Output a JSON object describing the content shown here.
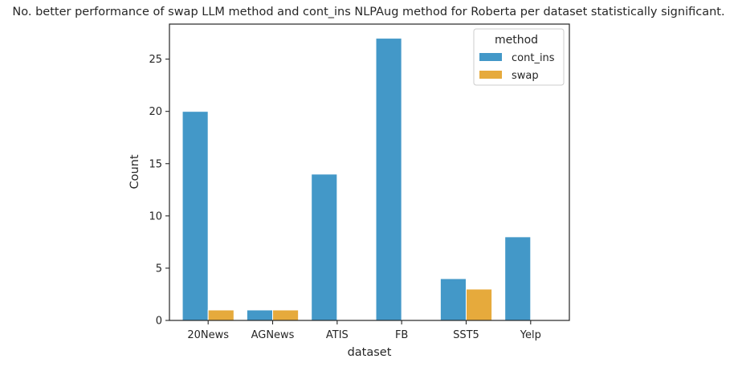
{
  "chart_data": {
    "type": "bar",
    "title": "No. better performance of swap LLM method and cont_ins NLPAug method for Roberta per dataset statistically significant.",
    "xlabel": "dataset",
    "ylabel": "Count",
    "categories": [
      "20News",
      "AGNews",
      "ATIS",
      "FB",
      "SST5",
      "Yelp"
    ],
    "series": [
      {
        "name": "cont_ins",
        "values": [
          20,
          1,
          14,
          27,
          4,
          8
        ],
        "color": "#4398c8"
      },
      {
        "name": "swap",
        "values": [
          1,
          1,
          0,
          0,
          3,
          0
        ],
        "color": "#e6aa3c"
      }
    ],
    "ylim": [
      0,
      28.35
    ],
    "yticks": [
      0,
      5,
      10,
      15,
      20,
      25
    ],
    "ytick_labels": [
      "0",
      "5",
      "10",
      "15",
      "20",
      "25"
    ],
    "legend": {
      "title": "method",
      "position": "top-right"
    },
    "grid": false
  }
}
